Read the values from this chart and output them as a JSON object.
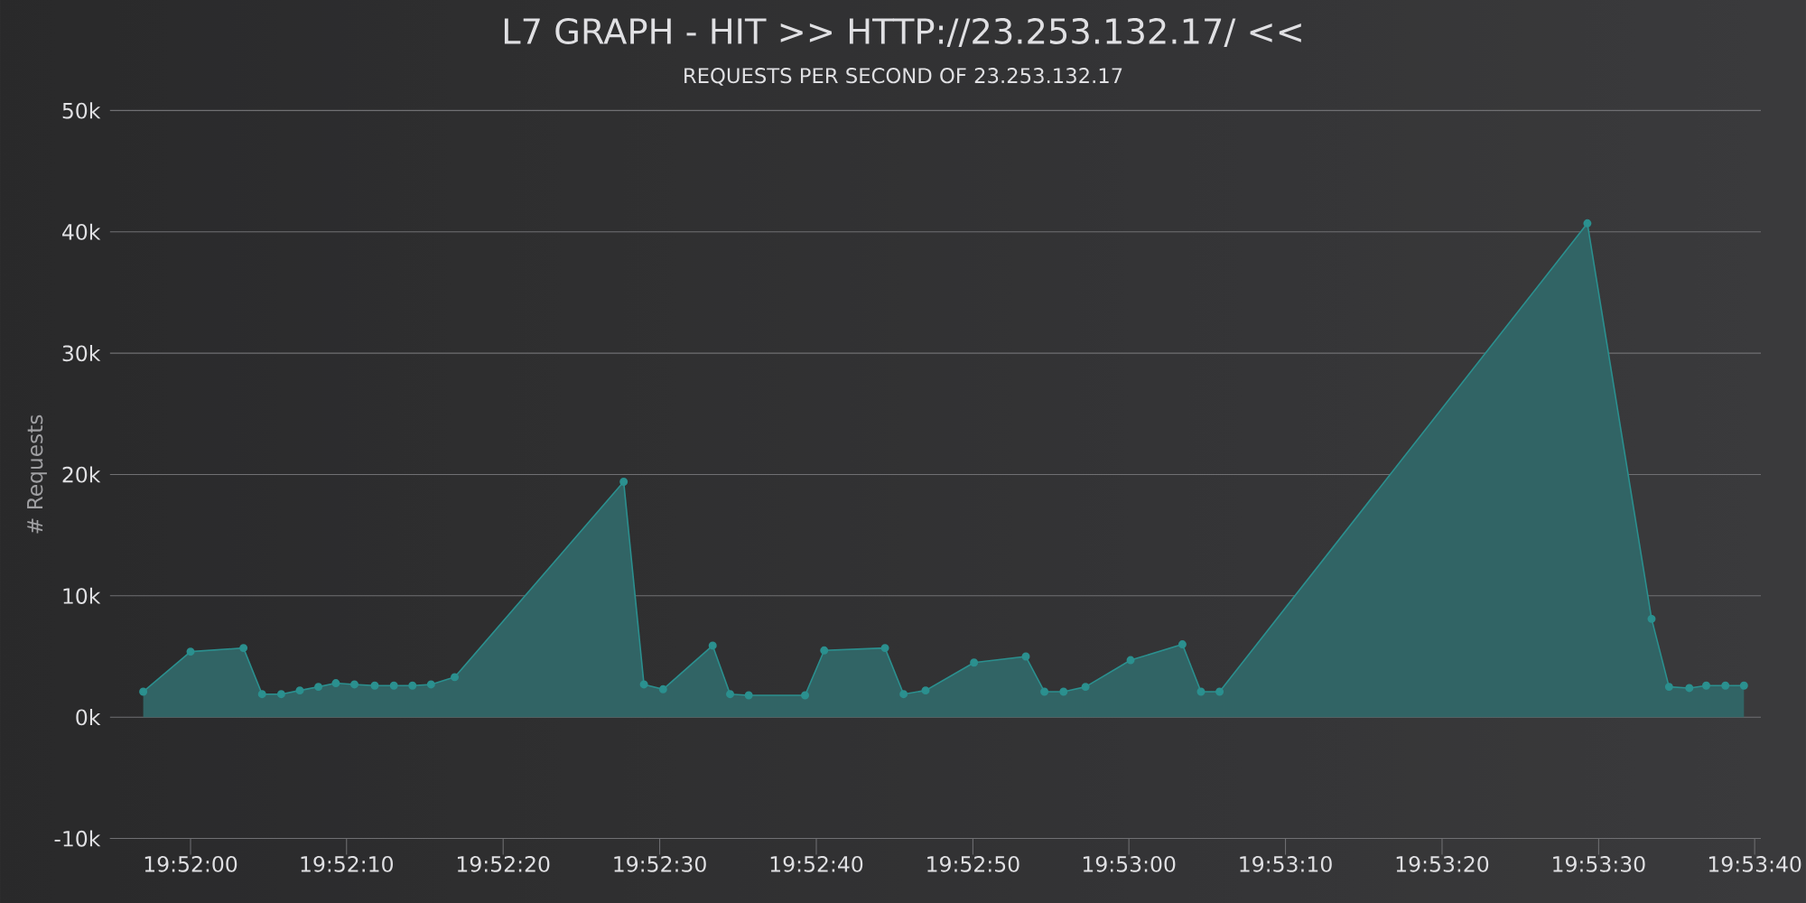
{
  "chart_data": {
    "type": "area",
    "title": "L7 GRAPH - HIT >> HTTP://23.253.132.17/ <<",
    "subtitle": "REQUESTS PER SECOND OF 23.253.132.17",
    "ylabel": "# Requests",
    "x": [
      19.86583,
      19.86667,
      19.86761,
      19.86794,
      19.86828,
      19.86861,
      19.86894,
      19.86925,
      19.86958,
      19.86994,
      19.87028,
      19.87061,
      19.87094,
      19.87136,
      19.87436,
      19.87472,
      19.87506,
      19.87594,
      19.87625,
      19.87658,
      19.87758,
      19.87792,
      19.879,
      19.87933,
      19.87972,
      19.88058,
      19.8815,
      19.88183,
      19.88217,
      19.88256,
      19.88336,
      19.88428,
      19.88461,
      19.88494,
      19.89147,
      19.89261,
      19.89292,
      19.89328,
      19.89358,
      19.89392,
      19.89425
    ],
    "values": [
      2100,
      5400,
      5700,
      1900,
      1900,
      2200,
      2500,
      2800,
      2700,
      2600,
      2600,
      2600,
      2700,
      3300,
      19400,
      2700,
      2300,
      5900,
      1900,
      1800,
      1800,
      5500,
      5700,
      1900,
      2200,
      4500,
      5000,
      2100,
      2100,
      2500,
      4700,
      6000,
      2100,
      2100,
      40700,
      8100,
      2500,
      2400,
      2600,
      2600,
      2600
    ],
    "color": "#2b908f",
    "xlim": [
      19.86524,
      19.89455
    ],
    "ylim": [
      -10000,
      50000
    ],
    "xticks": [
      {
        "value": 19.86667,
        "label": "19:52:00"
      },
      {
        "value": 19.86944,
        "label": "19:52:10"
      },
      {
        "value": 19.87222,
        "label": "19:52:20"
      },
      {
        "value": 19.875,
        "label": "19:52:30"
      },
      {
        "value": 19.87778,
        "label": "19:52:40"
      },
      {
        "value": 19.88056,
        "label": "19:52:50"
      },
      {
        "value": 19.88333,
        "label": "19:53:00"
      },
      {
        "value": 19.88611,
        "label": "19:53:10"
      },
      {
        "value": 19.88889,
        "label": "19:53:20"
      },
      {
        "value": 19.89167,
        "label": "19:53:30"
      },
      {
        "value": 19.89444,
        "label": "19:53:40"
      }
    ],
    "yticks": [
      {
        "value": -10000,
        "label": "-10k"
      },
      {
        "value": 0,
        "label": "0k"
      },
      {
        "value": 10000,
        "label": "10k"
      },
      {
        "value": 20000,
        "label": "20k"
      },
      {
        "value": 30000,
        "label": "30k"
      },
      {
        "value": 40000,
        "label": "40k"
      },
      {
        "value": 50000,
        "label": "50k"
      }
    ],
    "grid": "y",
    "marker": "circle"
  }
}
